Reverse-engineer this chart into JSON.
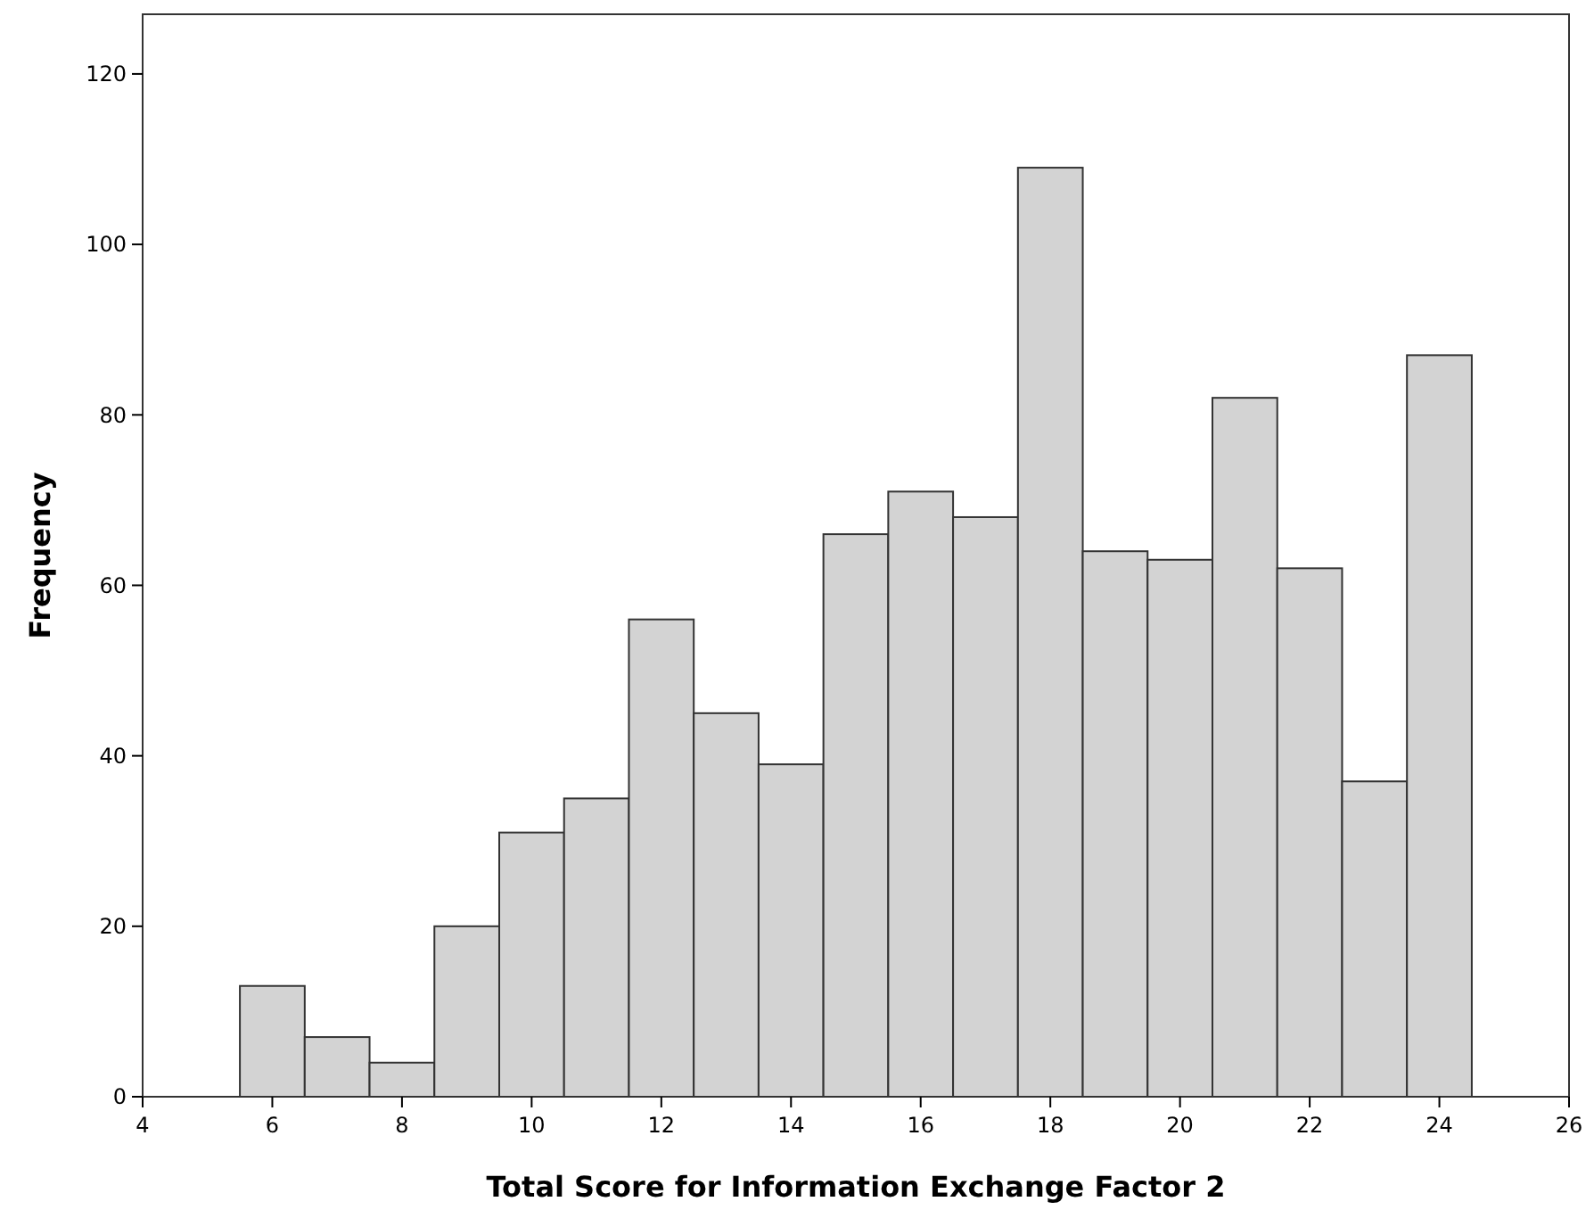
{
  "chart_data": {
    "type": "histogram",
    "xlabel": "Total Score for Information Exchange Factor 2",
    "ylabel": "Frequency",
    "bins": [
      5.5,
      6.5,
      7.5,
      8.5,
      9.5,
      10.5,
      11.5,
      12.5,
      13.5,
      14.5,
      15.5,
      16.5,
      17.5,
      18.5,
      19.5,
      20.5,
      21.5,
      22.5,
      23.5,
      24.5
    ],
    "values": [
      13,
      7,
      4,
      20,
      31,
      35,
      56,
      45,
      39,
      66,
      71,
      68,
      109,
      64,
      63,
      82,
      62,
      37,
      87
    ],
    "color": "#d3d3d3",
    "xlim": [
      4,
      26
    ],
    "xticks": [
      4,
      6,
      8,
      10,
      12,
      14,
      16,
      18,
      20,
      22,
      24,
      26
    ],
    "ylim": [
      0,
      127
    ],
    "yticks": [
      0,
      20,
      40,
      60,
      80,
      100,
      120
    ],
    "grid": false
  }
}
